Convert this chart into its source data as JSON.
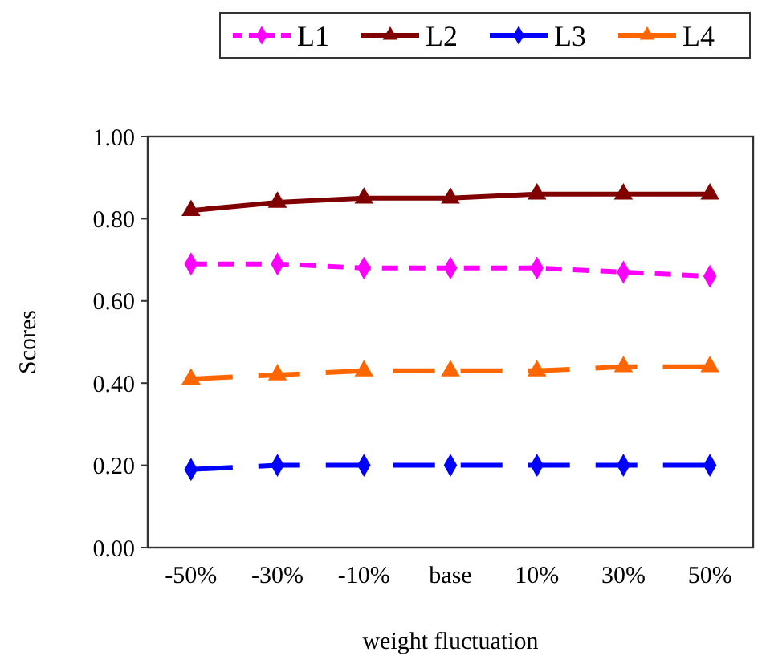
{
  "chart_data": {
    "type": "line",
    "xlabel": "weight fluctuation",
    "ylabel": "Scores",
    "categories": [
      "-50%",
      "-30%",
      "-10%",
      "base",
      "10%",
      "30%",
      "50%"
    ],
    "ylim": [
      0,
      1
    ],
    "yticks": [
      {
        "value": 0,
        "label": "0.00"
      },
      {
        "value": 0.2,
        "label": "0.20"
      },
      {
        "value": 0.4,
        "label": "0.40"
      },
      {
        "value": 0.6,
        "label": "0.60"
      },
      {
        "value": 0.8,
        "label": "0.80"
      },
      {
        "value": 1,
        "label": "1.00"
      }
    ],
    "grid": false,
    "legend": "top",
    "series": [
      {
        "name": "L1",
        "color": "#ff00ff",
        "marker": "diamond",
        "line_style": "dashed",
        "values": [
          0.69,
          0.69,
          0.68,
          0.68,
          0.68,
          0.67,
          0.66
        ]
      },
      {
        "name": "L2",
        "color": "#800000",
        "marker": "triangle",
        "line_style": "solid",
        "values": [
          0.82,
          0.84,
          0.85,
          0.85,
          0.86,
          0.86,
          0.86
        ]
      },
      {
        "name": "L3",
        "color": "#0000ff",
        "marker": "diamond",
        "line_style": "longdash",
        "values": [
          0.19,
          0.2,
          0.2,
          0.2,
          0.2,
          0.2,
          0.2
        ]
      },
      {
        "name": "L4",
        "color": "#ff6600",
        "marker": "triangle",
        "line_style": "longdash",
        "values": [
          0.41,
          0.42,
          0.43,
          0.43,
          0.43,
          0.44,
          0.44
        ]
      }
    ]
  }
}
